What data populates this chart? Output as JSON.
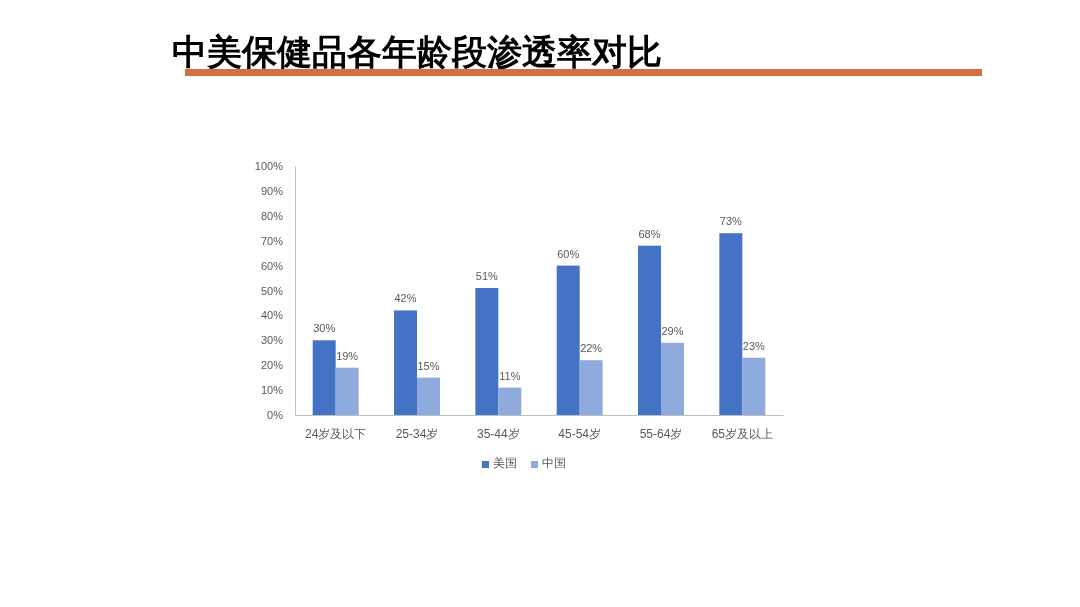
{
  "chart_data": {
    "type": "bar",
    "title": "中美保健品各年龄段渗透率对比",
    "categories": [
      "24岁及以下",
      "25-34岁",
      "35-44岁",
      "45-54岁",
      "55-64岁",
      "65岁及以上"
    ],
    "series": [
      {
        "name": "美国",
        "color": "#4472c4",
        "values": [
          30,
          42,
          51,
          60,
          68,
          73
        ],
        "value_labels": [
          "30%",
          "42%",
          "51%",
          "60%",
          "68%",
          "73%"
        ]
      },
      {
        "name": "中国",
        "color": "#8faadc",
        "values": [
          19,
          15,
          11,
          22,
          29,
          23
        ],
        "value_labels": [
          "19%",
          "15%",
          "11%",
          "22%",
          "29%",
          "23%"
        ]
      }
    ],
    "ylim": [
      0,
      100
    ],
    "yticks": [
      {
        "value": 0,
        "label": "0%"
      },
      {
        "value": 10,
        "label": "10%"
      },
      {
        "value": 20,
        "label": "20%"
      },
      {
        "value": 30,
        "label": "30%"
      },
      {
        "value": 40,
        "label": "40%"
      },
      {
        "value": 50,
        "label": "50%"
      },
      {
        "value": 60,
        "label": "60%"
      },
      {
        "value": 70,
        "label": "70%"
      },
      {
        "value": 80,
        "label": "80%"
      },
      {
        "value": 90,
        "label": "90%"
      },
      {
        "value": 100,
        "label": "100%"
      }
    ],
    "legend": "bottom"
  }
}
